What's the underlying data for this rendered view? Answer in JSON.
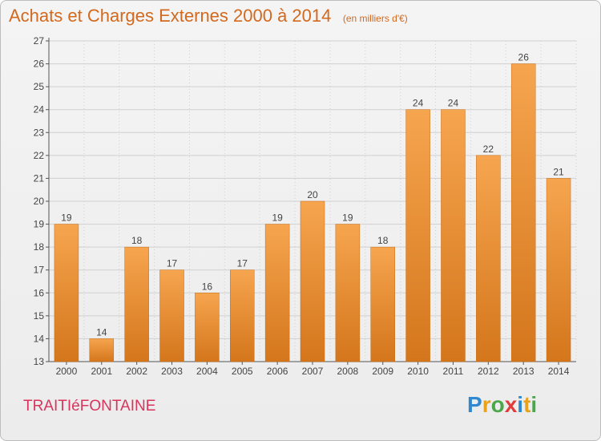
{
  "header": {
    "title": "Achats et Charges Externes 2000 à 2014",
    "unit": "(en milliers d'€)"
  },
  "footer": {
    "commune": "TRAITIéFONTAINE",
    "logo_text": "Proxiti"
  },
  "colors": {
    "title": "#d2691e",
    "commune": "#d9345c",
    "bar_light": "#f6a54f",
    "bar_dark": "#d4761c",
    "grid": "#d0d0d0",
    "axis": "#555555"
  },
  "chart_data": {
    "type": "bar",
    "title": "Achats et Charges Externes 2000 à 2014",
    "subtitle": "(en milliers d'€)",
    "xlabel": "",
    "ylabel": "",
    "categories": [
      "2000",
      "2001",
      "2002",
      "2003",
      "2004",
      "2005",
      "2006",
      "2007",
      "2008",
      "2009",
      "2010",
      "2011",
      "2012",
      "2013",
      "2014"
    ],
    "values": [
      19,
      14,
      18,
      17,
      16,
      17,
      19,
      20,
      19,
      18,
      24,
      24,
      22,
      26,
      21
    ],
    "ylim": [
      13,
      27
    ],
    "yticks": [
      13,
      14,
      15,
      16,
      17,
      18,
      19,
      20,
      21,
      22,
      23,
      24,
      25,
      26,
      27
    ],
    "grid": true,
    "legend": "none"
  }
}
